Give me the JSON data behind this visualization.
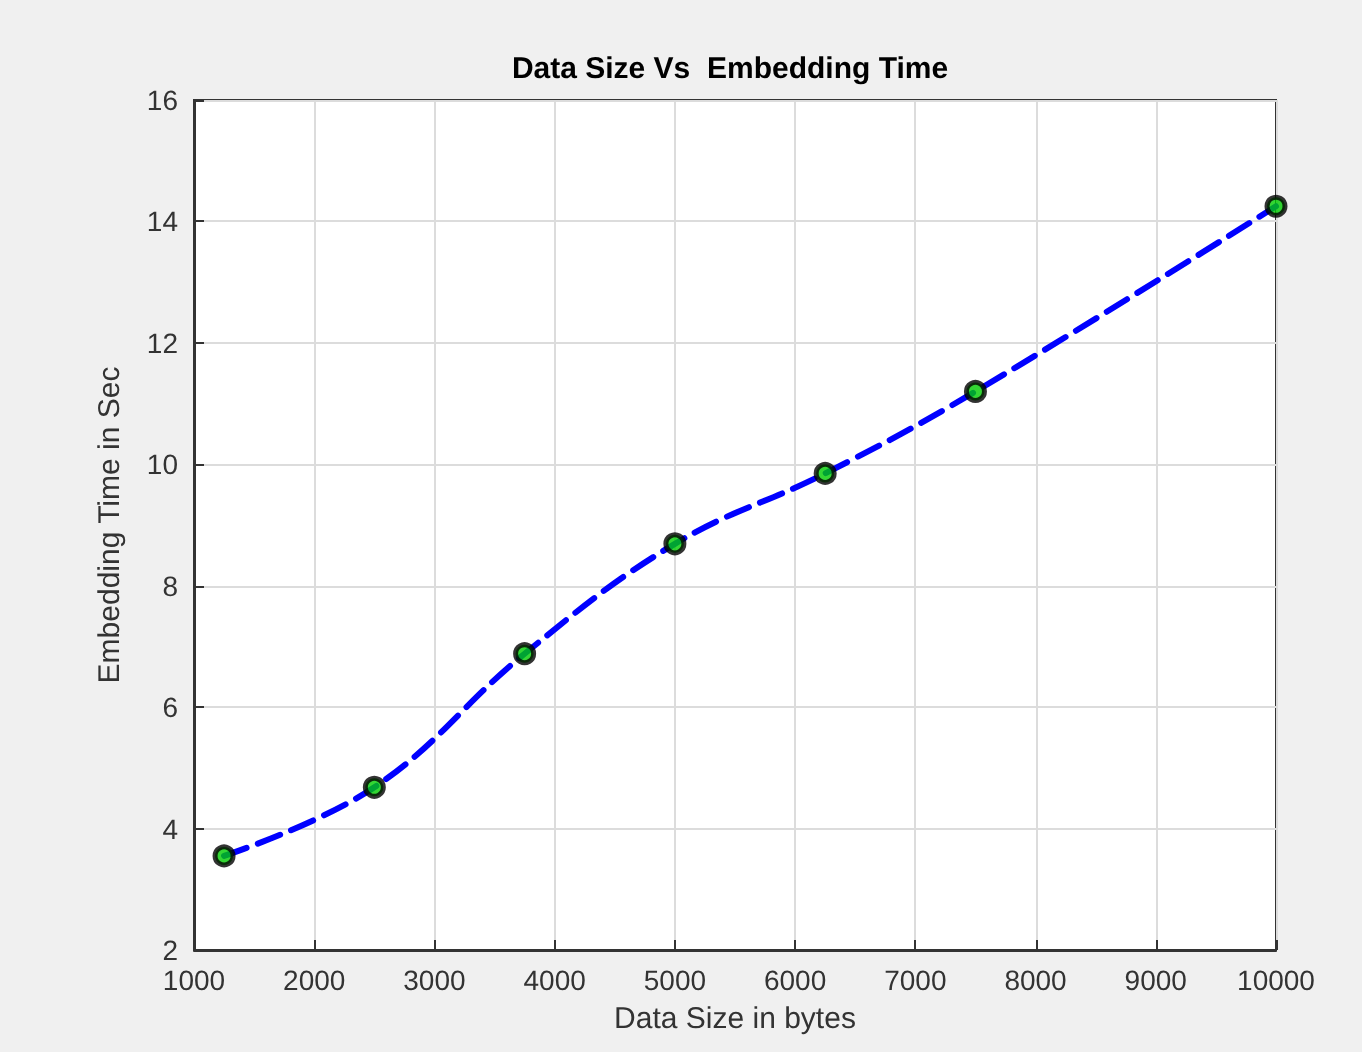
{
  "chart_data": {
    "type": "line",
    "title": "Data Size Vs  Embedding Time",
    "xlabel": "Data Size in bytes",
    "ylabel": "Embedding Time in Sec",
    "x": [
      1250,
      2500,
      3750,
      5000,
      6250,
      7500,
      10000
    ],
    "series": [
      {
        "color": "#0000ff",
        "marker": "none",
        "line_style": "dashed",
        "values": [
          3.55,
          4.68,
          6.88,
          8.69,
          9.85,
          11.2,
          14.25
        ]
      },
      {
        "type": "scatter",
        "color": "#00cc00",
        "marker": "circle",
        "values": [
          3.55,
          4.68,
          6.88,
          8.69,
          9.85,
          11.2,
          14.25
        ]
      }
    ],
    "xlim": [
      1000,
      10000
    ],
    "xticks": [
      1000,
      2000,
      3000,
      4000,
      5000,
      6000,
      7000,
      8000,
      9000,
      10000
    ],
    "ylim": [
      2,
      16
    ],
    "yticks": [
      2,
      4,
      6,
      8,
      10,
      12,
      14,
      16
    ],
    "grid": true
  }
}
